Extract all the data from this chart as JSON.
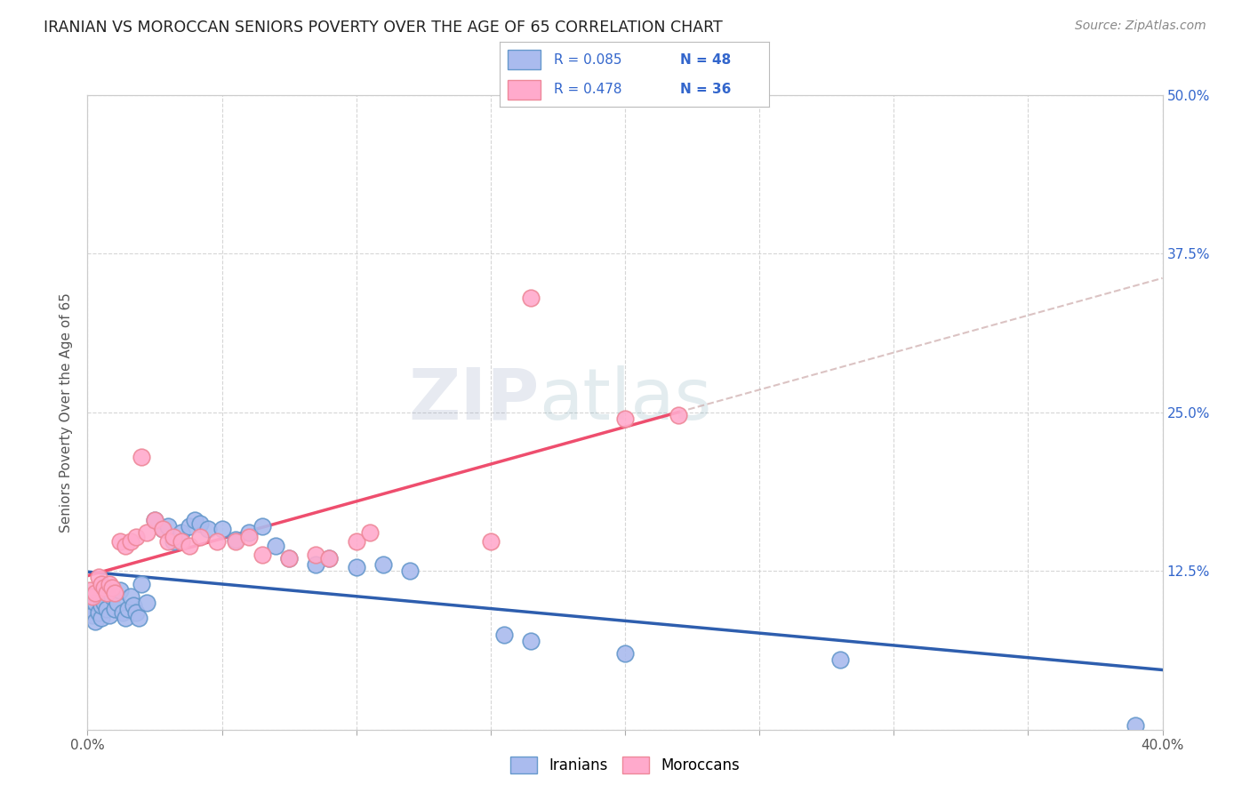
{
  "title": "IRANIAN VS MOROCCAN SENIORS POVERTY OVER THE AGE OF 65 CORRELATION CHART",
  "source": "Source: ZipAtlas.com",
  "ylabel": "Seniors Poverty Over the Age of 65",
  "xlim": [
    0.0,
    0.4
  ],
  "ylim": [
    0.0,
    0.5
  ],
  "xtick_positions": [
    0.0,
    0.05,
    0.1,
    0.15,
    0.2,
    0.25,
    0.3,
    0.35,
    0.4
  ],
  "xticklabels": [
    "0.0%",
    "",
    "",
    "",
    "",
    "",
    "",
    "",
    "40.0%"
  ],
  "ytick_positions": [
    0.0,
    0.125,
    0.25,
    0.375,
    0.5
  ],
  "yticklabels_right": [
    "",
    "12.5%",
    "25.0%",
    "37.5%",
    "50.0%"
  ],
  "grid_color": "#cccccc",
  "background_color": "#ffffff",
  "iranian_color": "#aabbee",
  "iranian_edge_color": "#6699cc",
  "moroccan_color": "#ffaacc",
  "moroccan_edge_color": "#ee8899",
  "iranian_line_color": "#2255aa",
  "moroccan_line_color": "#ee4466",
  "legend_R_iranian": "R = 0.085",
  "legend_N_iranian": "N = 48",
  "legend_R_moroccan": "R = 0.478",
  "legend_N_moroccan": "N = 36",
  "watermark_zip": "ZIP",
  "watermark_atlas": "atlas",
  "iranians_x": [
    0.001,
    0.002,
    0.003,
    0.003,
    0.004,
    0.005,
    0.005,
    0.006,
    0.007,
    0.008,
    0.009,
    0.01,
    0.011,
    0.012,
    0.013,
    0.014,
    0.015,
    0.016,
    0.017,
    0.018,
    0.019,
    0.02,
    0.022,
    0.025,
    0.028,
    0.03,
    0.032,
    0.035,
    0.038,
    0.04,
    0.042,
    0.045,
    0.05,
    0.055,
    0.06,
    0.065,
    0.07,
    0.075,
    0.085,
    0.09,
    0.1,
    0.11,
    0.12,
    0.155,
    0.165,
    0.2,
    0.28,
    0.39
  ],
  "iranians_y": [
    0.095,
    0.09,
    0.085,
    0.1,
    0.092,
    0.088,
    0.098,
    0.1,
    0.095,
    0.09,
    0.105,
    0.095,
    0.1,
    0.11,
    0.092,
    0.088,
    0.095,
    0.105,
    0.098,
    0.092,
    0.088,
    0.115,
    0.1,
    0.165,
    0.158,
    0.16,
    0.148,
    0.155,
    0.16,
    0.165,
    0.162,
    0.158,
    0.158,
    0.15,
    0.155,
    0.16,
    0.145,
    0.135,
    0.13,
    0.135,
    0.128,
    0.13,
    0.125,
    0.075,
    0.07,
    0.06,
    0.055,
    0.003
  ],
  "moroccans_x": [
    0.001,
    0.002,
    0.003,
    0.004,
    0.005,
    0.006,
    0.007,
    0.008,
    0.009,
    0.01,
    0.012,
    0.014,
    0.016,
    0.018,
    0.02,
    0.022,
    0.025,
    0.028,
    0.03,
    0.032,
    0.035,
    0.038,
    0.042,
    0.048,
    0.055,
    0.06,
    0.065,
    0.075,
    0.085,
    0.09,
    0.1,
    0.105,
    0.15,
    0.165,
    0.2,
    0.22
  ],
  "moroccans_y": [
    0.11,
    0.105,
    0.108,
    0.12,
    0.115,
    0.112,
    0.108,
    0.115,
    0.112,
    0.108,
    0.148,
    0.145,
    0.148,
    0.152,
    0.215,
    0.155,
    0.165,
    0.158,
    0.148,
    0.152,
    0.148,
    0.145,
    0.152,
    0.148,
    0.148,
    0.152,
    0.138,
    0.135,
    0.138,
    0.135,
    0.148,
    0.155,
    0.148,
    0.34,
    0.245,
    0.248
  ]
}
